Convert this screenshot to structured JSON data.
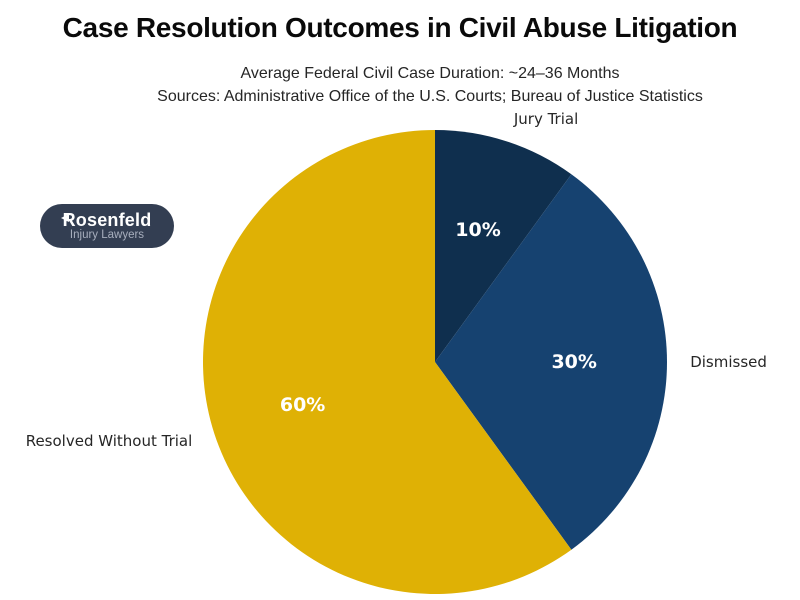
{
  "page": {
    "background": "#ffffff"
  },
  "header": {
    "title": "Case Resolution Outcomes in Civil Abuse Litigation",
    "subtitle_line1": "Average Federal Civil Case Duration: ~24–36 Months",
    "subtitle_line2": "Sources: Administrative Office of the U.S. Courts; Bureau of Justice Statistics"
  },
  "logo": {
    "line1": "Rosenfeld",
    "line2": "Injury Lawyers",
    "bg_color": "#333e52",
    "text_color": "#ffffff",
    "subtext_color": "#a7aebd",
    "arrow_icon": "left-arrow-icon"
  },
  "chart_data": {
    "type": "pie",
    "title": "Case Resolution Outcomes in Civil Abuse Litigation",
    "start_angle_deg": 90,
    "direction": "clockwise",
    "legend_position": "none",
    "category_labels_position": "outside",
    "pct_labels_position": "inside",
    "pct_text_color": "#ffffff",
    "label_text_color": "#262626",
    "slices": [
      {
        "label": "Jury Trial",
        "value": 10,
        "display_pct": "10%",
        "color": "#0f2f4e"
      },
      {
        "label": "Dismissed",
        "value": 30,
        "display_pct": "30%",
        "color": "#164270"
      },
      {
        "label": "Resolved Without Trial",
        "value": 60,
        "display_pct": "60%",
        "color": "#dfb105"
      }
    ]
  }
}
